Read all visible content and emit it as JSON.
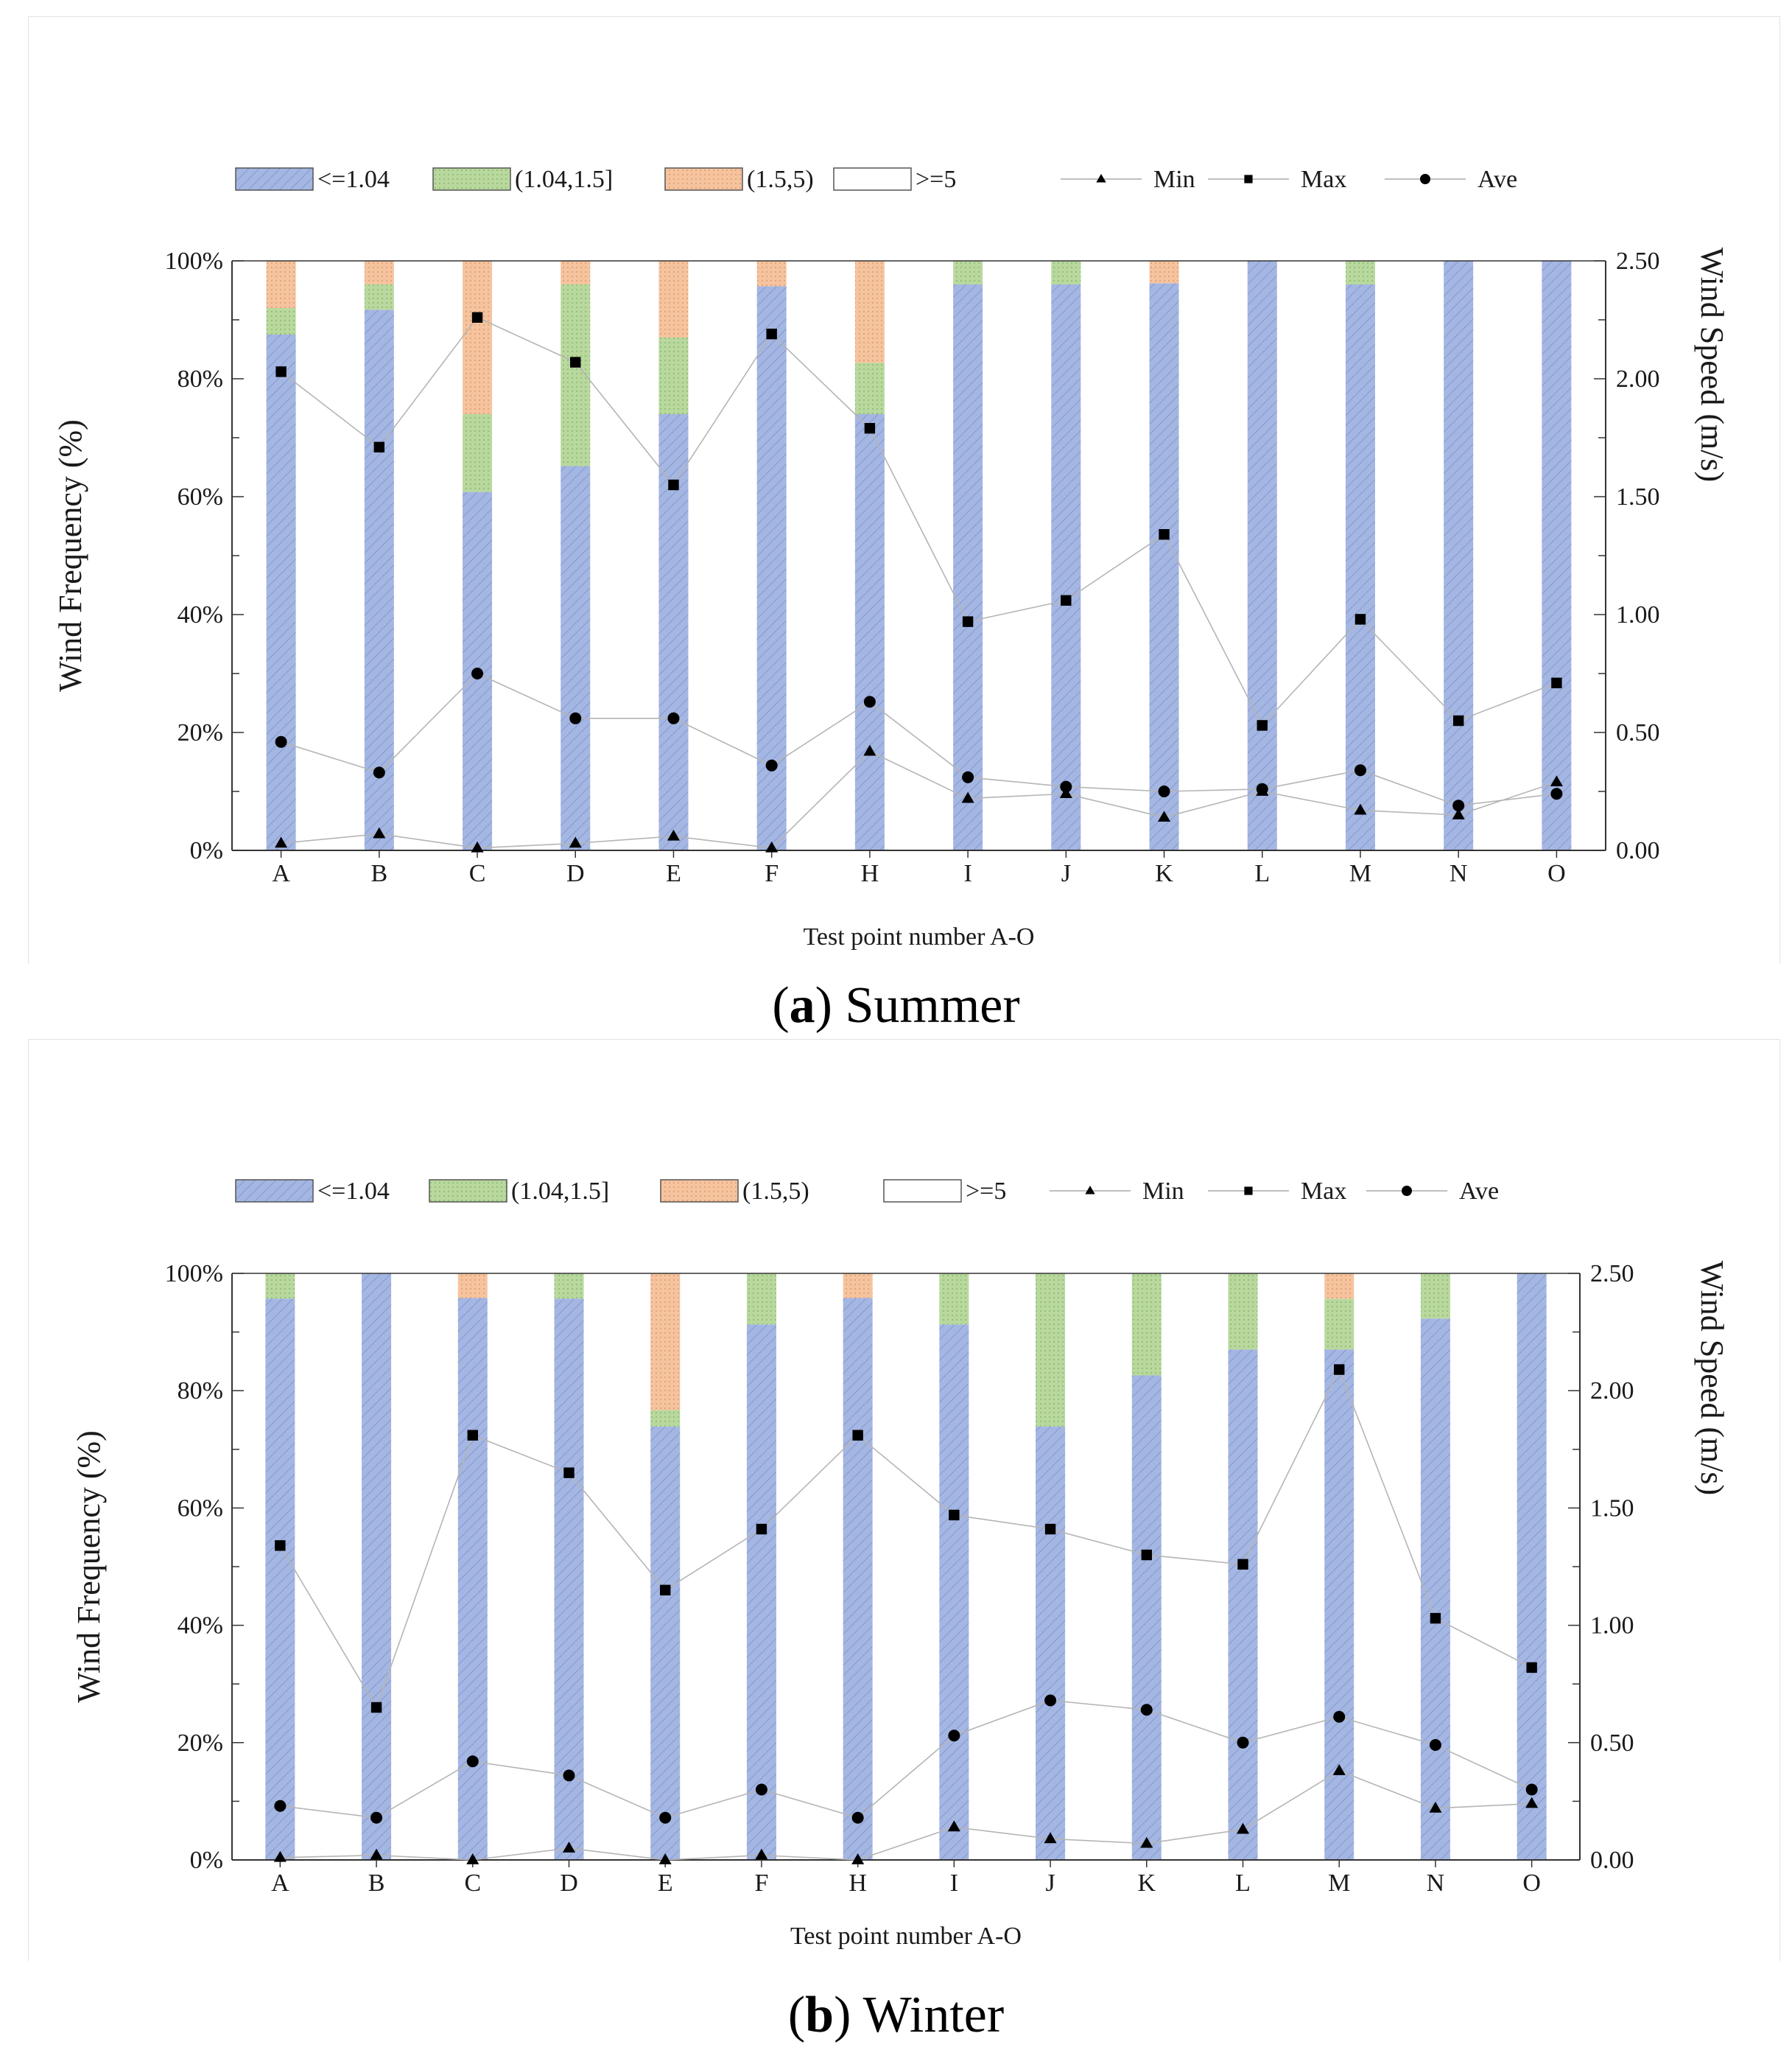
{
  "chart_data": [
    {
      "type": "bar",
      "id": "summer",
      "stacked": true,
      "caption_letter": "a",
      "caption_text": "Summer",
      "xlabel": "Test point number A-O",
      "ylabel_left": "Wind   Frequency   (%)",
      "ylabel_right": "Wind   Speed   (m/s)",
      "ylim_left": [
        0,
        100
      ],
      "ylim_right": [
        0,
        2.5
      ],
      "yticks_left": [
        "0%",
        "20%",
        "40%",
        "60%",
        "80%",
        "100%"
      ],
      "yticks_right": [
        "0.00",
        "0.50",
        "1.00",
        "1.50",
        "2.00",
        "2.50"
      ],
      "categories": [
        "A",
        "B",
        "C",
        "D",
        "E",
        "F",
        "H",
        "I",
        "J",
        "K",
        "L",
        "M",
        "N",
        "O"
      ],
      "legend_position": "top",
      "series": [
        {
          "name": "<=1.04",
          "kind": "bar",
          "color": "#a4b6e2",
          "values": [
            87.5,
            91.7,
            60.8,
            65.2,
            74.0,
            95.7,
            74.0,
            96.0,
            96.0,
            96.2,
            100,
            96.0,
            100,
            100
          ]
        },
        {
          "name": "(1.04,1.5]",
          "kind": "bar",
          "color": "#b5d69a",
          "values": [
            4.5,
            4.3,
            13.2,
            30.8,
            13.0,
            0,
            8.7,
            4.0,
            4.0,
            0,
            0,
            4.0,
            0,
            0
          ]
        },
        {
          "name": "(1.5,5)",
          "kind": "bar",
          "color": "#f3c09a",
          "values": [
            8.0,
            4.0,
            26.0,
            4.0,
            13.0,
            4.3,
            17.3,
            0,
            0,
            3.8,
            0,
            0,
            0,
            0
          ]
        },
        {
          "name": ">=5",
          "kind": "bar",
          "color": "#ffffff",
          "values": [
            0,
            0,
            0,
            0,
            0,
            0,
            0,
            0,
            0,
            0,
            0,
            0,
            0,
            0
          ]
        },
        {
          "name": "Min",
          "kind": "line",
          "marker": "triangle",
          "values": [
            0.03,
            0.07,
            0.01,
            0.03,
            0.06,
            0.01,
            0.42,
            0.22,
            0.24,
            0.14,
            0.25,
            0.17,
            0.15,
            0.29
          ]
        },
        {
          "name": "Max",
          "kind": "line",
          "marker": "square",
          "values": [
            2.03,
            1.71,
            2.26,
            2.07,
            1.55,
            2.19,
            1.79,
            0.97,
            1.06,
            1.34,
            0.53,
            0.98,
            0.55,
            0.71
          ]
        },
        {
          "name": "Ave",
          "kind": "line",
          "marker": "circle",
          "values": [
            0.46,
            0.33,
            0.75,
            0.56,
            0.56,
            0.36,
            0.63,
            0.31,
            0.27,
            0.25,
            0.26,
            0.34,
            0.19,
            0.24
          ]
        }
      ]
    },
    {
      "type": "bar",
      "id": "winter",
      "stacked": true,
      "caption_letter": "b",
      "caption_text": "Winter",
      "xlabel": "Test point number A-O",
      "ylabel_left": "Wind   Frequency   (%)",
      "ylabel_right": "Wind   Speed   (m/s)",
      "ylim_left": [
        0,
        100
      ],
      "ylim_right": [
        0,
        2.5
      ],
      "yticks_left": [
        "0%",
        "20%",
        "40%",
        "60%",
        "80%",
        "100%"
      ],
      "yticks_right": [
        "0.00",
        "0.50",
        "1.00",
        "1.50",
        "2.00",
        "2.50"
      ],
      "categories": [
        "A",
        "B",
        "C",
        "D",
        "E",
        "F",
        "H",
        "I",
        "J",
        "K",
        "L",
        "M",
        "N",
        "O"
      ],
      "legend_position": "top",
      "series": [
        {
          "name": "<=1.04",
          "kind": "bar",
          "color": "#a4b6e2",
          "values": [
            95.7,
            100,
            95.8,
            95.7,
            73.9,
            91.3,
            95.8,
            91.3,
            73.9,
            82.6,
            87.0,
            87.0,
            92.3,
            100
          ]
        },
        {
          "name": "(1.04,1.5]",
          "kind": "bar",
          "color": "#b5d69a",
          "values": [
            4.3,
            0,
            0,
            4.3,
            2.8,
            8.7,
            0,
            8.7,
            26.1,
            17.4,
            13.0,
            8.7,
            7.7,
            0
          ]
        },
        {
          "name": "(1.5,5)",
          "kind": "bar",
          "color": "#f3c09a",
          "values": [
            0,
            0,
            4.2,
            0,
            23.3,
            0,
            4.2,
            0,
            0,
            0,
            0,
            4.3,
            0,
            0
          ]
        },
        {
          "name": ">=5",
          "kind": "bar",
          "color": "#ffffff",
          "values": [
            0,
            0,
            0,
            0,
            0,
            0,
            0,
            0,
            0,
            0,
            0,
            0,
            0,
            0
          ]
        },
        {
          "name": "Min",
          "kind": "line",
          "marker": "triangle",
          "values": [
            0.01,
            0.02,
            0.0,
            0.05,
            0.0,
            0.02,
            0.0,
            0.14,
            0.09,
            0.07,
            0.13,
            0.38,
            0.22,
            0.24
          ]
        },
        {
          "name": "Max",
          "kind": "line",
          "marker": "square",
          "values": [
            1.34,
            0.65,
            1.81,
            1.65,
            1.15,
            1.41,
            1.81,
            1.47,
            1.41,
            1.3,
            1.26,
            2.09,
            1.03,
            0.82
          ]
        },
        {
          "name": "Ave",
          "kind": "line",
          "marker": "circle",
          "values": [
            0.23,
            0.18,
            0.42,
            0.36,
            0.18,
            0.3,
            0.18,
            0.53,
            0.68,
            0.64,
            0.5,
            0.61,
            0.49,
            0.3
          ]
        }
      ]
    }
  ]
}
